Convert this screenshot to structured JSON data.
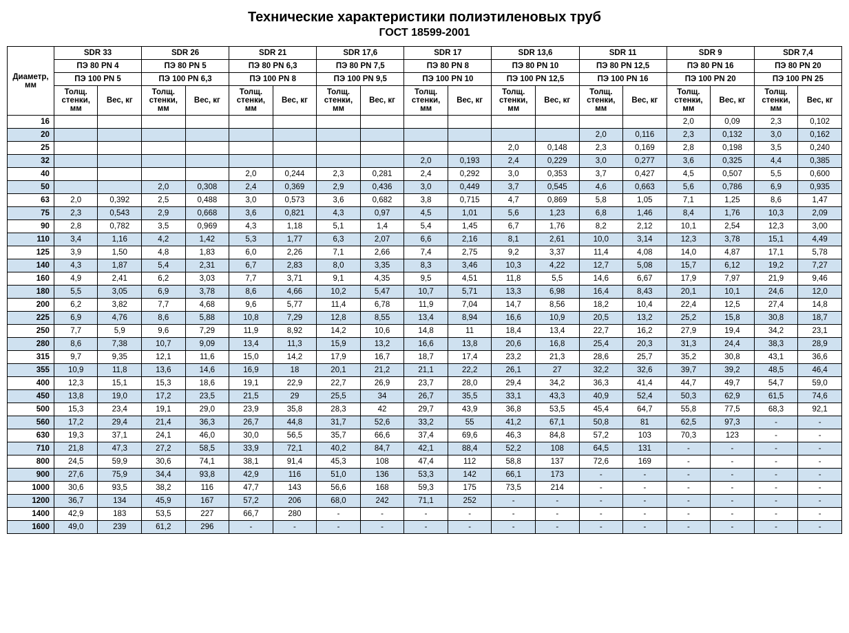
{
  "title": "Технические характеристики полиэтиленовых труб",
  "subtitle": "ГОСТ 18599-2001",
  "diam_header": "Диаметр, мм",
  "sub1": "Толщ. стенки, мм",
  "sub2": "Вес, кг",
  "colors": {
    "alt_row": "#cfe1f0",
    "border": "#000000",
    "background": "#ffffff"
  },
  "groups": [
    {
      "sdr": "SDR 33",
      "pe80": "ПЭ 80 PN 4",
      "pe100": "ПЭ 100 PN 5"
    },
    {
      "sdr": "SDR 26",
      "pe80": "ПЭ 80 PN 5",
      "pe100": "ПЭ 100 PN 6,3"
    },
    {
      "sdr": "SDR 21",
      "pe80": "ПЭ 80 PN 6,3",
      "pe100": "ПЭ 100 PN 8"
    },
    {
      "sdr": "SDR 17,6",
      "pe80": "ПЭ 80 PN 7,5",
      "pe100": "ПЭ 100 PN 9,5"
    },
    {
      "sdr": "SDR 17",
      "pe80": "ПЭ 80 PN 8",
      "pe100": "ПЭ 100 PN 10"
    },
    {
      "sdr": "SDR 13,6",
      "pe80": "ПЭ 80 PN 10",
      "pe100": "ПЭ 100 PN 12,5"
    },
    {
      "sdr": "SDR 11",
      "pe80": "ПЭ 80 PN 12,5",
      "pe100": "ПЭ 100 PN 16"
    },
    {
      "sdr": "SDR 9",
      "pe80": "ПЭ 80 PN 16",
      "pe100": "ПЭ 100 PN 20"
    },
    {
      "sdr": "SDR 7,4",
      "pe80": "ПЭ 80 PN 20",
      "pe100": "ПЭ 100 PN 25"
    }
  ],
  "rows": [
    {
      "d": "16",
      "alt": false,
      "v": [
        "",
        "",
        "",
        "",
        "",
        "",
        "",
        "",
        "",
        "",
        "",
        "",
        "",
        "",
        "2,0",
        "0,09",
        "2,3",
        "0,102"
      ]
    },
    {
      "d": "20",
      "alt": true,
      "v": [
        "",
        "",
        "",
        "",
        "",
        "",
        "",
        "",
        "",
        "",
        "",
        "",
        "2,0",
        "0,116",
        "2,3",
        "0,132",
        "3,0",
        "0,162"
      ]
    },
    {
      "d": "25",
      "alt": false,
      "v": [
        "",
        "",
        "",
        "",
        "",
        "",
        "",
        "",
        "",
        "",
        "2,0",
        "0,148",
        "2,3",
        "0,169",
        "2,8",
        "0,198",
        "3,5",
        "0,240"
      ]
    },
    {
      "d": "32",
      "alt": true,
      "v": [
        "",
        "",
        "",
        "",
        "",
        "",
        "",
        "",
        "2,0",
        "0,193",
        "2,4",
        "0,229",
        "3,0",
        "0,277",
        "3,6",
        "0,325",
        "4,4",
        "0,385"
      ]
    },
    {
      "d": "40",
      "alt": false,
      "v": [
        "",
        "",
        "",
        "",
        "2,0",
        "0,244",
        "2,3",
        "0,281",
        "2,4",
        "0,292",
        "3,0",
        "0,353",
        "3,7",
        "0,427",
        "4,5",
        "0,507",
        "5,5",
        "0,600"
      ]
    },
    {
      "d": "50",
      "alt": true,
      "v": [
        "",
        "",
        "2,0",
        "0,308",
        "2,4",
        "0,369",
        "2,9",
        "0,436",
        "3,0",
        "0,449",
        "3,7",
        "0,545",
        "4,6",
        "0,663",
        "5,6",
        "0,786",
        "6,9",
        "0,935"
      ]
    },
    {
      "d": "63",
      "alt": false,
      "v": [
        "2,0",
        "0,392",
        "2,5",
        "0,488",
        "3,0",
        "0,573",
        "3,6",
        "0,682",
        "3,8",
        "0,715",
        "4,7",
        "0,869",
        "5,8",
        "1,05",
        "7,1",
        "1,25",
        "8,6",
        "1,47"
      ]
    },
    {
      "d": "75",
      "alt": true,
      "v": [
        "2,3",
        "0,543",
        "2,9",
        "0,668",
        "3,6",
        "0,821",
        "4,3",
        "0,97",
        "4,5",
        "1,01",
        "5,6",
        "1,23",
        "6,8",
        "1,46",
        "8,4",
        "1,76",
        "10,3",
        "2,09"
      ]
    },
    {
      "d": "90",
      "alt": false,
      "v": [
        "2,8",
        "0,782",
        "3,5",
        "0,969",
        "4,3",
        "1,18",
        "5,1",
        "1,4",
        "5,4",
        "1,45",
        "6,7",
        "1,76",
        "8,2",
        "2,12",
        "10,1",
        "2,54",
        "12,3",
        "3,00"
      ]
    },
    {
      "d": "110",
      "alt": true,
      "v": [
        "3,4",
        "1,16",
        "4,2",
        "1,42",
        "5,3",
        "1,77",
        "6,3",
        "2,07",
        "6,6",
        "2,16",
        "8,1",
        "2,61",
        "10,0",
        "3,14",
        "12,3",
        "3,78",
        "15,1",
        "4,49"
      ]
    },
    {
      "d": "125",
      "alt": false,
      "v": [
        "3,9",
        "1,50",
        "4,8",
        "1,83",
        "6,0",
        "2,26",
        "7,1",
        "2,66",
        "7,4",
        "2,75",
        "9,2",
        "3,37",
        "11,4",
        "4,08",
        "14,0",
        "4,87",
        "17,1",
        "5,78"
      ]
    },
    {
      "d": "140",
      "alt": true,
      "v": [
        "4,3",
        "1,87",
        "5,4",
        "2,31",
        "6,7",
        "2,83",
        "8,0",
        "3,35",
        "8,3",
        "3,46",
        "10,3",
        "4,22",
        "12,7",
        "5,08",
        "15,7",
        "6,12",
        "19,2",
        "7,27"
      ]
    },
    {
      "d": "160",
      "alt": false,
      "v": [
        "4,9",
        "2,41",
        "6,2",
        "3,03",
        "7,7",
        "3,71",
        "9,1",
        "4,35",
        "9,5",
        "4,51",
        "11,8",
        "5,5",
        "14,6",
        "6,67",
        "17,9",
        "7,97",
        "21,9",
        "9,46"
      ]
    },
    {
      "d": "180",
      "alt": true,
      "v": [
        "5,5",
        "3,05",
        "6,9",
        "3,78",
        "8,6",
        "4,66",
        "10,2",
        "5,47",
        "10,7",
        "5,71",
        "13,3",
        "6,98",
        "16,4",
        "8,43",
        "20,1",
        "10,1",
        "24,6",
        "12,0"
      ]
    },
    {
      "d": "200",
      "alt": false,
      "v": [
        "6,2",
        "3,82",
        "7,7",
        "4,68",
        "9,6",
        "5,77",
        "11,4",
        "6,78",
        "11,9",
        "7,04",
        "14,7",
        "8,56",
        "18,2",
        "10,4",
        "22,4",
        "12,5",
        "27,4",
        "14,8"
      ]
    },
    {
      "d": "225",
      "alt": true,
      "v": [
        "6,9",
        "4,76",
        "8,6",
        "5,88",
        "10,8",
        "7,29",
        "12,8",
        "8,55",
        "13,4",
        "8,94",
        "16,6",
        "10,9",
        "20,5",
        "13,2",
        "25,2",
        "15,8",
        "30,8",
        "18,7"
      ]
    },
    {
      "d": "250",
      "alt": false,
      "v": [
        "7,7",
        "5,9",
        "9,6",
        "7,29",
        "11,9",
        "8,92",
        "14,2",
        "10,6",
        "14,8",
        "11",
        "18,4",
        "13,4",
        "22,7",
        "16,2",
        "27,9",
        "19,4",
        "34,2",
        "23,1"
      ]
    },
    {
      "d": "280",
      "alt": true,
      "v": [
        "8,6",
        "7,38",
        "10,7",
        "9,09",
        "13,4",
        "11,3",
        "15,9",
        "13,2",
        "16,6",
        "13,8",
        "20,6",
        "16,8",
        "25,4",
        "20,3",
        "31,3",
        "24,4",
        "38,3",
        "28,9"
      ]
    },
    {
      "d": "315",
      "alt": false,
      "v": [
        "9,7",
        "9,35",
        "12,1",
        "11,6",
        "15,0",
        "14,2",
        "17,9",
        "16,7",
        "18,7",
        "17,4",
        "23,2",
        "21,3",
        "28,6",
        "25,7",
        "35,2",
        "30,8",
        "43,1",
        "36,6"
      ]
    },
    {
      "d": "355",
      "alt": true,
      "v": [
        "10,9",
        "11,8",
        "13,6",
        "14,6",
        "16,9",
        "18",
        "20,1",
        "21,2",
        "21,1",
        "22,2",
        "26,1",
        "27",
        "32,2",
        "32,6",
        "39,7",
        "39,2",
        "48,5",
        "46,4"
      ]
    },
    {
      "d": "400",
      "alt": false,
      "v": [
        "12,3",
        "15,1",
        "15,3",
        "18,6",
        "19,1",
        "22,9",
        "22,7",
        "26,9",
        "23,7",
        "28,0",
        "29,4",
        "34,2",
        "36,3",
        "41,4",
        "44,7",
        "49,7",
        "54,7",
        "59,0"
      ]
    },
    {
      "d": "450",
      "alt": true,
      "v": [
        "13,8",
        "19,0",
        "17,2",
        "23,5",
        "21,5",
        "29",
        "25,5",
        "34",
        "26,7",
        "35,5",
        "33,1",
        "43,3",
        "40,9",
        "52,4",
        "50,3",
        "62,9",
        "61,5",
        "74,6"
      ]
    },
    {
      "d": "500",
      "alt": false,
      "v": [
        "15,3",
        "23,4",
        "19,1",
        "29,0",
        "23,9",
        "35,8",
        "28,3",
        "42",
        "29,7",
        "43,9",
        "36,8",
        "53,5",
        "45,4",
        "64,7",
        "55,8",
        "77,5",
        "68,3",
        "92,1"
      ]
    },
    {
      "d": "560",
      "alt": true,
      "v": [
        "17,2",
        "29,4",
        "21,4",
        "36,3",
        "26,7",
        "44,8",
        "31,7",
        "52,6",
        "33,2",
        "55",
        "41,2",
        "67,1",
        "50,8",
        "81",
        "62,5",
        "97,3",
        "-",
        "-"
      ]
    },
    {
      "d": "630",
      "alt": false,
      "v": [
        "19,3",
        "37,1",
        "24,1",
        "46,0",
        "30,0",
        "56,5",
        "35,7",
        "66,6",
        "37,4",
        "69,6",
        "46,3",
        "84,8",
        "57,2",
        "103",
        "70,3",
        "123",
        "-",
        "-"
      ]
    },
    {
      "d": "710",
      "alt": true,
      "v": [
        "21,8",
        "47,3",
        "27,2",
        "58,5",
        "33,9",
        "72,1",
        "40,2",
        "84,7",
        "42,1",
        "88,4",
        "52,2",
        "108",
        "64,5",
        "131",
        "-",
        "-",
        "-",
        "-"
      ]
    },
    {
      "d": "800",
      "alt": false,
      "v": [
        "24,5",
        "59,9",
        "30,6",
        "74,1",
        "38,1",
        "91,4",
        "45,3",
        "108",
        "47,4",
        "112",
        "58,8",
        "137",
        "72,6",
        "169",
        "-",
        "-",
        "-",
        "-"
      ]
    },
    {
      "d": "900",
      "alt": true,
      "v": [
        "27,6",
        "75,9",
        "34,4",
        "93,8",
        "42,9",
        "116",
        "51,0",
        "136",
        "53,3",
        "142",
        "66,1",
        "173",
        "-",
        "-",
        "-",
        "-",
        "-",
        "-"
      ]
    },
    {
      "d": "1000",
      "alt": false,
      "v": [
        "30,6",
        "93,5",
        "38,2",
        "116",
        "47,7",
        "143",
        "56,6",
        "168",
        "59,3",
        "175",
        "73,5",
        "214",
        "-",
        "-",
        "-",
        "-",
        "-",
        "-"
      ]
    },
    {
      "d": "1200",
      "alt": true,
      "v": [
        "36,7",
        "134",
        "45,9",
        "167",
        "57,2",
        "206",
        "68,0",
        "242",
        "71,1",
        "252",
        "-",
        "-",
        "-",
        "-",
        "-",
        "-",
        "-",
        "-"
      ]
    },
    {
      "d": "1400",
      "alt": false,
      "v": [
        "42,9",
        "183",
        "53,5",
        "227",
        "66,7",
        "280",
        "-",
        "-",
        "-",
        "-",
        "-",
        "-",
        "-",
        "-",
        "-",
        "-",
        "-",
        "-"
      ]
    },
    {
      "d": "1600",
      "alt": true,
      "v": [
        "49,0",
        "239",
        "61,2",
        "296",
        "-",
        "-",
        "-",
        "-",
        "-",
        "-",
        "-",
        "-",
        "-",
        "-",
        "-",
        "-",
        "-",
        "-"
      ]
    }
  ]
}
